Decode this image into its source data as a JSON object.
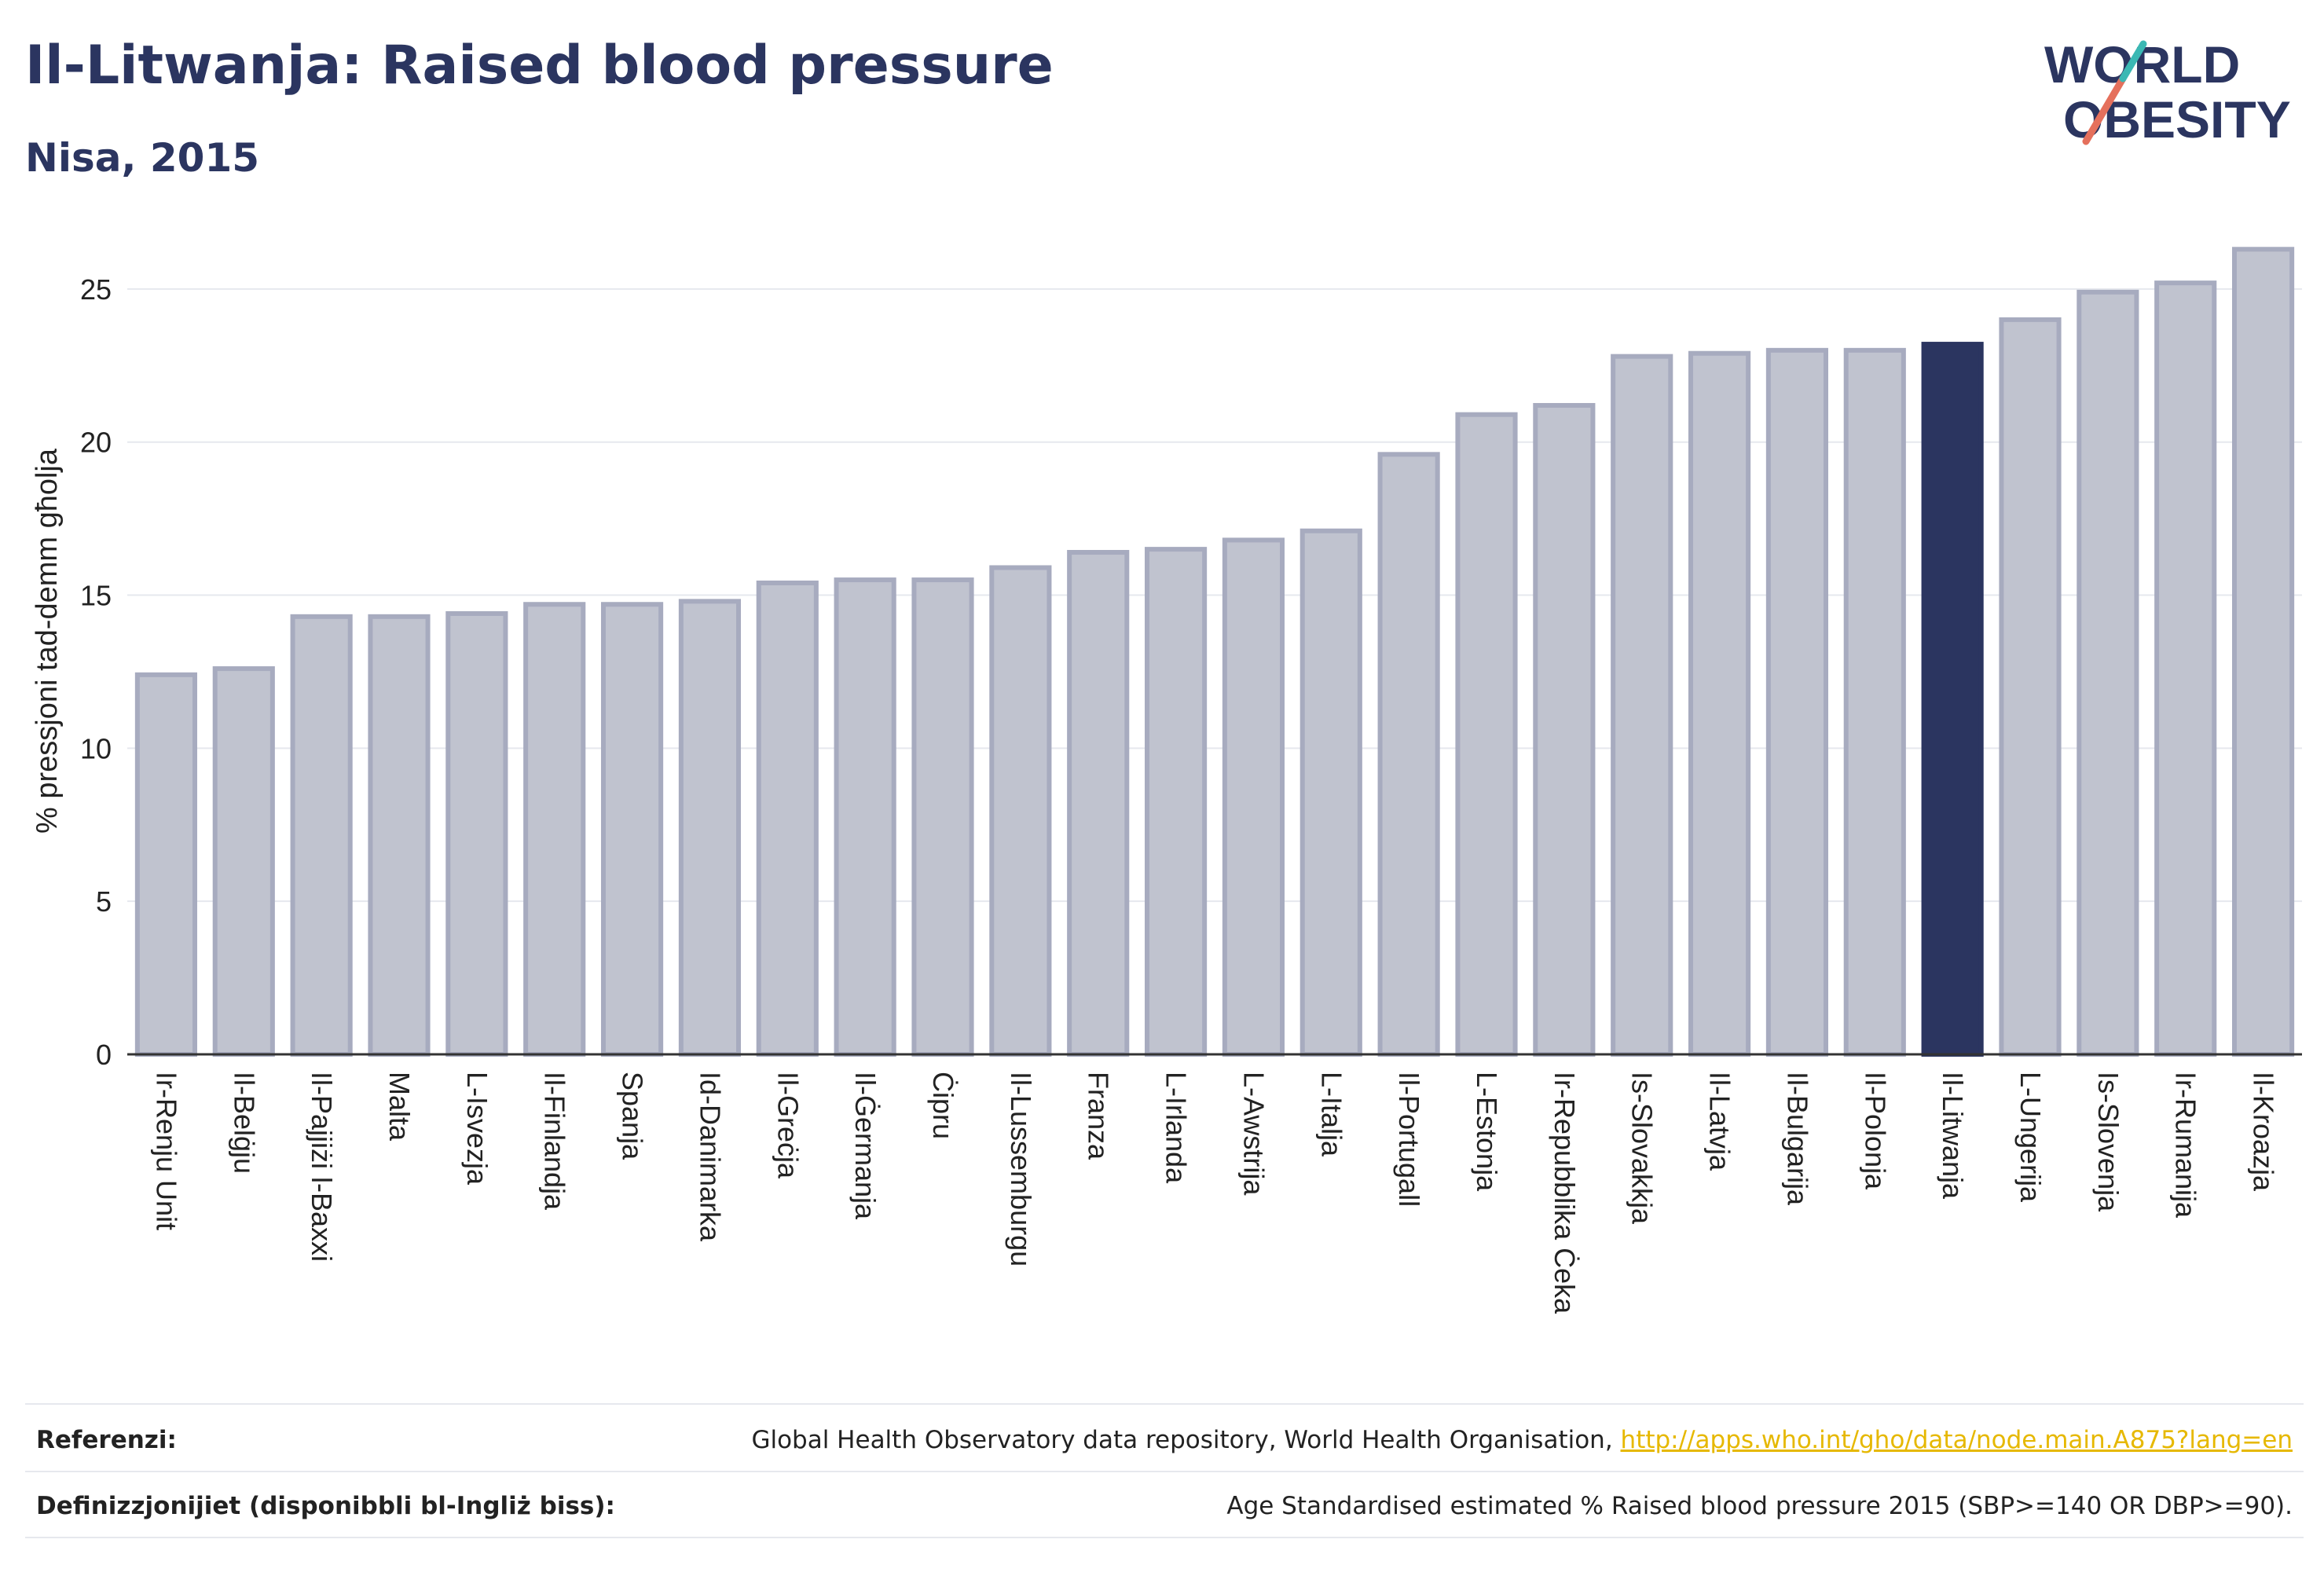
{
  "header": {
    "title": "Il-Litwanja: Raised blood pressure",
    "subtitle": "Nisa, 2015"
  },
  "logo": {
    "line1": "WORLD",
    "line2": "OBESITY"
  },
  "chart_data": {
    "type": "bar",
    "ylabel": "% pressjoni tad-demm għolja",
    "ylim": [
      0,
      27
    ],
    "yticks": [
      0,
      5,
      10,
      15,
      20,
      25
    ],
    "grid": true,
    "highlight": "Il-Litwanja",
    "colors": {
      "bar": "#c0c3cf",
      "bar_edge": "#a7abbf",
      "highlight": "#2b3560"
    },
    "categories": [
      "Ir-Renju Unit",
      "Il-Belġju",
      "Il-Pajjiżi l-Baxxi",
      "Malta",
      "L-Isvezja",
      "Il-Finlandja",
      "Spanja",
      "Id-Danimarka",
      "Il-Greċja",
      "Il-Ġermanja",
      "Ċipru",
      "Il-Lussemburgu",
      "Franza",
      "L-Irlanda",
      "L-Awstrija",
      "L-Italja",
      "Il-Portugall",
      "L-Estonja",
      "Ir-Repubblika Ċeka",
      "Is-Slovakkja",
      "Il-Latvja",
      "Il-Bulgarija",
      "Il-Polonja",
      "Il-Litwanja",
      "L-Ungerija",
      "Is-Slovenja",
      "Ir-Rumanija",
      "Il-Kroazja"
    ],
    "values": [
      12.4,
      12.6,
      14.3,
      14.3,
      14.4,
      14.7,
      14.7,
      14.8,
      15.4,
      15.5,
      15.5,
      15.9,
      16.4,
      16.5,
      16.8,
      17.1,
      19.6,
      20.9,
      21.2,
      22.8,
      22.9,
      23.0,
      23.0,
      23.2,
      24.0,
      24.9,
      25.2,
      26.3
    ]
  },
  "footer": {
    "ref_label": "Referenzi:",
    "ref_text": "Global Health Observatory data repository, World Health Organisation, ",
    "ref_link": "http://apps.who.int/gho/data/node.main.A875?lang=en",
    "def_label": "Definizzjonijiet (disponibbli bl-Ingliż biss):",
    "def_text": "Age Standardised estimated % Raised blood pressure 2015 (SBP>=140 OR DBP>=90)."
  }
}
